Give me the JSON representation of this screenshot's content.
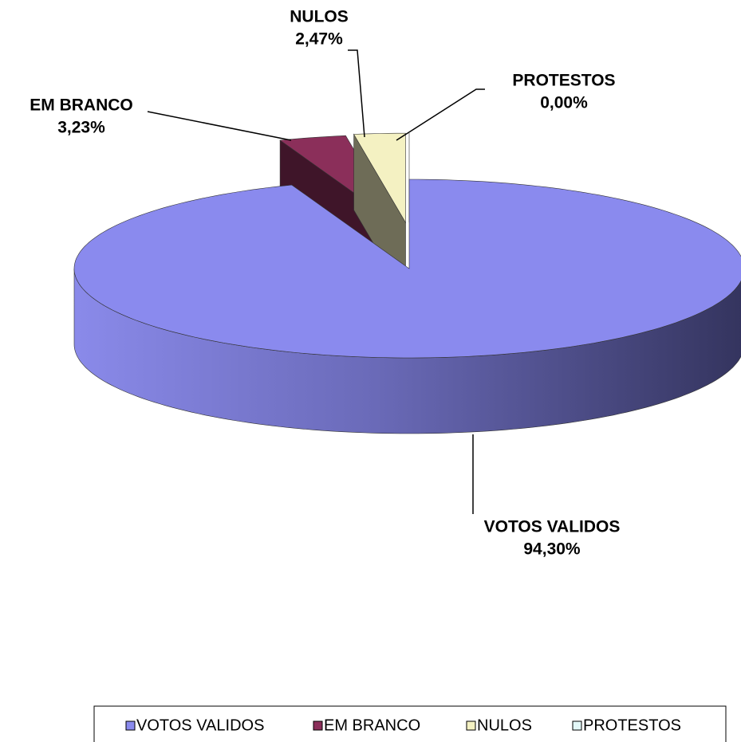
{
  "chart_data": {
    "type": "pie3d",
    "categories": [
      "VOTOS VALIDOS",
      "EM BRANCO",
      "NULOS",
      "PROTESTOS"
    ],
    "values": [
      94.3,
      3.23,
      2.47,
      0
    ],
    "value_labels": [
      "94,30%",
      "3,23%",
      "2,47%",
      "0,00%"
    ],
    "colors": [
      "#8a8aee",
      "#8b2f5a",
      "#f4f1c2",
      "#e2f7f7"
    ],
    "legend": "bottom"
  }
}
